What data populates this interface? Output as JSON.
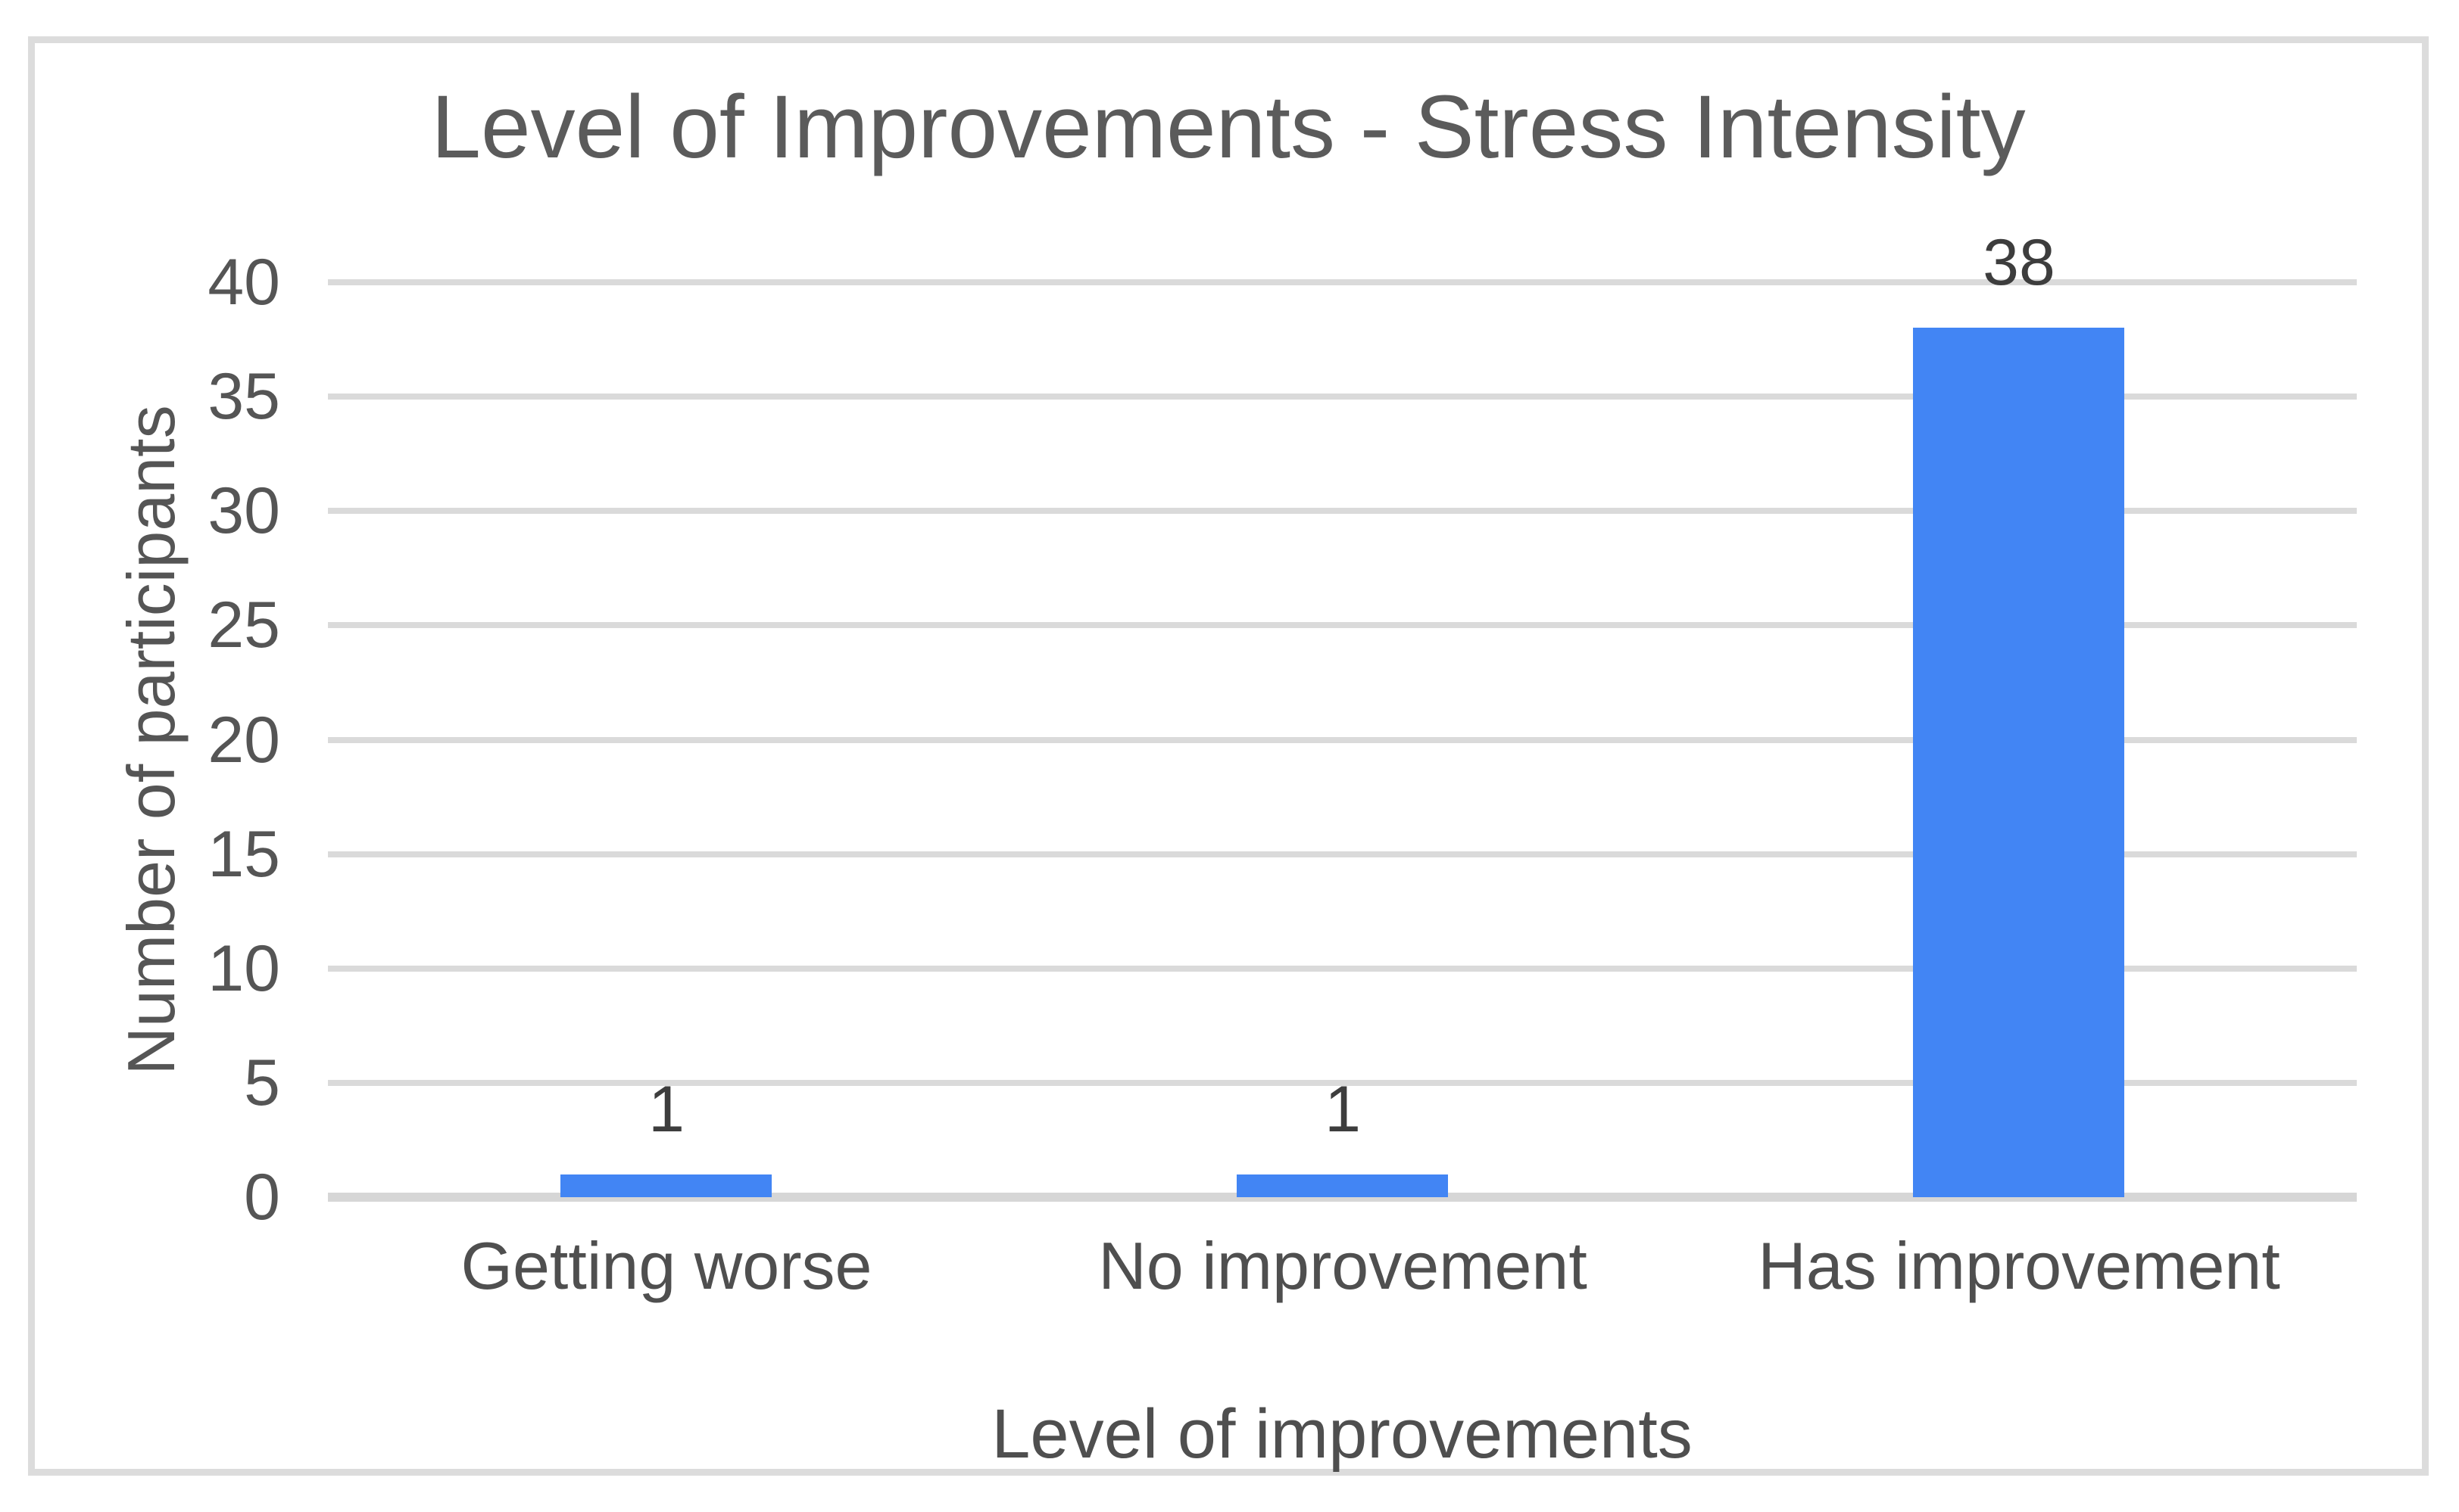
{
  "chart": {
    "title": "Level of Improvements - Stress Intensity",
    "x_axis_title": "Level of improvements",
    "y_axis_title": "Number of participants"
  },
  "chart_data": {
    "type": "bar",
    "title": "Level of Improvements - Stress Intensity",
    "xlabel": "Level of improvements",
    "ylabel": "Number of participants",
    "categories": [
      "Getting worse",
      "No improvement",
      "Has improvement"
    ],
    "values": [
      1,
      1,
      38
    ],
    "data_labels": [
      "1",
      "1",
      "38"
    ],
    "ylim": [
      0,
      40
    ],
    "yticks": [
      0,
      5,
      10,
      15,
      20,
      25,
      30,
      35,
      40
    ],
    "grid": true,
    "legend": false,
    "colors": {
      "bar": "#4285F4",
      "gridline": "#DADADA",
      "baseline": "#D6D6D6",
      "axis_text": "#555555",
      "category_text": "#4F4F4F",
      "data_label_text": "#3D3D3D",
      "title_text": "#5B5B5B",
      "frame_border": "#DCDCDC",
      "background": "#FFFFFF"
    }
  }
}
